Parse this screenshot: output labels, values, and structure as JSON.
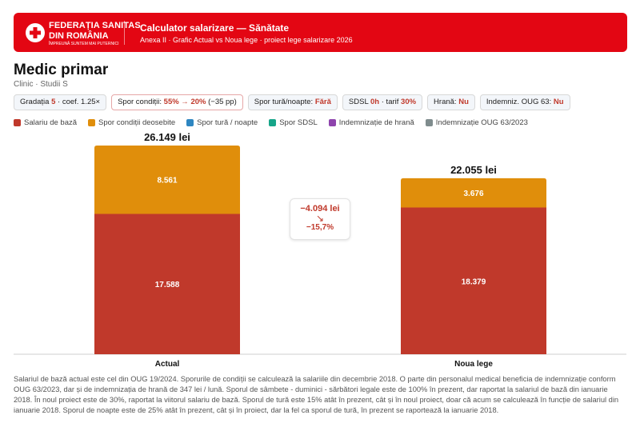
{
  "header": {
    "logo": {
      "line1": "FEDERAȚIA SANITAS",
      "line2": "DIN ROMÂNIA",
      "line3": "ÎMPREUNĂ SUNTEM MAI PUTERNICI"
    },
    "title": "Calculator salarizare — Sănătate",
    "subtitle": "Anexa II · Grafic Actual vs Noua lege · proiect lege salarizare 2026"
  },
  "profile": {
    "title": "Medic primar",
    "subtitle": "Clinic · Studii S"
  },
  "chips": [
    {
      "label": "Gradația",
      "value": "5",
      "extra": "· coef. 1.25×"
    },
    {
      "label": "Spor condiții:",
      "value": "55% → 20%",
      "extra": "(−35 pp)"
    },
    {
      "label": "Spor tură/noapte:",
      "value": "Fără",
      "extra": ""
    },
    {
      "label": "SDSL",
      "value": "0h",
      "extra": "· tarif",
      "value2": "30%"
    },
    {
      "label": "Hrană:",
      "value": "Nu",
      "extra": ""
    },
    {
      "label": "Indemniz. OUG 63:",
      "value": "Nu",
      "extra": ""
    }
  ],
  "legend": [
    {
      "name": "Salariu de bază",
      "color": "#c0392b"
    },
    {
      "name": "Spor condiții deosebite",
      "color": "#e08e0b"
    },
    {
      "name": "Spor tură / noapte",
      "color": "#2e86c1"
    },
    {
      "name": "Spor SDSL",
      "color": "#17a589"
    },
    {
      "name": "Indemnizație de hrană",
      "color": "#8e44ad"
    },
    {
      "name": "Indemnizație OUG 63/2023",
      "color": "#7f8c8d"
    }
  ],
  "chart_data": {
    "type": "bar",
    "stacked": true,
    "categories": [
      "Actual",
      "Noua lege"
    ],
    "totals": [
      "26.149 lei",
      "22.055 lei"
    ],
    "series": [
      {
        "name": "Salariu de bază",
        "color": "#c0392b",
        "values": [
          17588,
          18379
        ],
        "labels": [
          "17.588",
          "18.379"
        ]
      },
      {
        "name": "Spor condiții deosebite",
        "color": "#e08e0b",
        "values": [
          8561,
          3676
        ],
        "labels": [
          "8.561",
          "3.676"
        ]
      }
    ],
    "ylim": [
      0,
      26149
    ],
    "grid": false,
    "legend": "top-left"
  },
  "delta": {
    "value": "−4.094 lei",
    "arrow": "↘",
    "percent": "−15,7%"
  },
  "note": "Salariul de bază actual este cel din OUG 19/2024. Sporurile de condiții se calculează la salariile din decembrie 2018. O parte din personalul medical beneficia de indemnizație conform OUG 63/2023, dar și de indemnizația de hrană de 347 lei / lună. Sporul de sâmbete - duminici - sărbători legale este de 100% în prezent, dar raportat la salariul de bază din ianuarie 2018. În noul proiect este de 30%, raportat la viitorul salariu de bază. Sporul de tură este 15% atât în prezent, cât și în noul proiect, doar că acum se calculează în funcție de salariul din ianuarie 2018. Sporul de noapte este de 25% atât în prezent, cât și în proiect, dar la fel ca sporul de tură, în prezent se raportează la ianuarie 2018."
}
